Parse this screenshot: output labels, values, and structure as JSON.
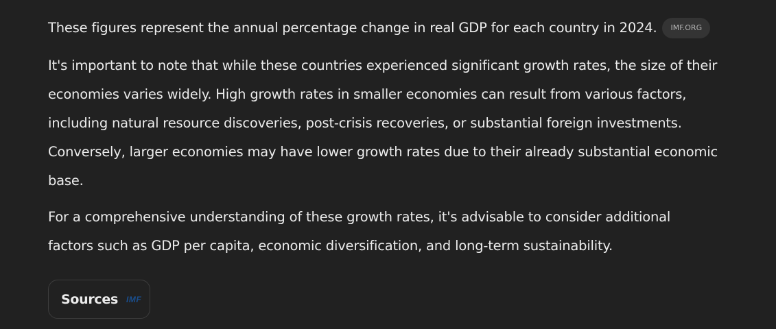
{
  "paragraph1": {
    "text": "These figures represent the annual percentage change in real GDP for each country in 2024.",
    "source_chip": "IMF.ORG"
  },
  "paragraph2": {
    "lines": [
      "It's important to note that while these countries experienced significant growth rates, the size of their",
      "economies varies widely. High growth rates in smaller economies can result from various factors,",
      "including natural resource discoveries, post-crisis recoveries, or substantial foreign investments.",
      "Conversely, larger economies may have lower growth rates due to their already substantial economic",
      "base."
    ]
  },
  "paragraph3": {
    "lines": [
      "For a comprehensive understanding of these growth rates, it's advisable to consider additional",
      "factors such as GDP per capita, economic diversification, and long-term sustainability."
    ]
  },
  "sources": {
    "label": "Sources",
    "logo_text": "IMF",
    "logo_color": "#1a4f8f"
  },
  "colors": {
    "background": "#212121",
    "text": "#ececec",
    "chip_bg": "#343434"
  }
}
